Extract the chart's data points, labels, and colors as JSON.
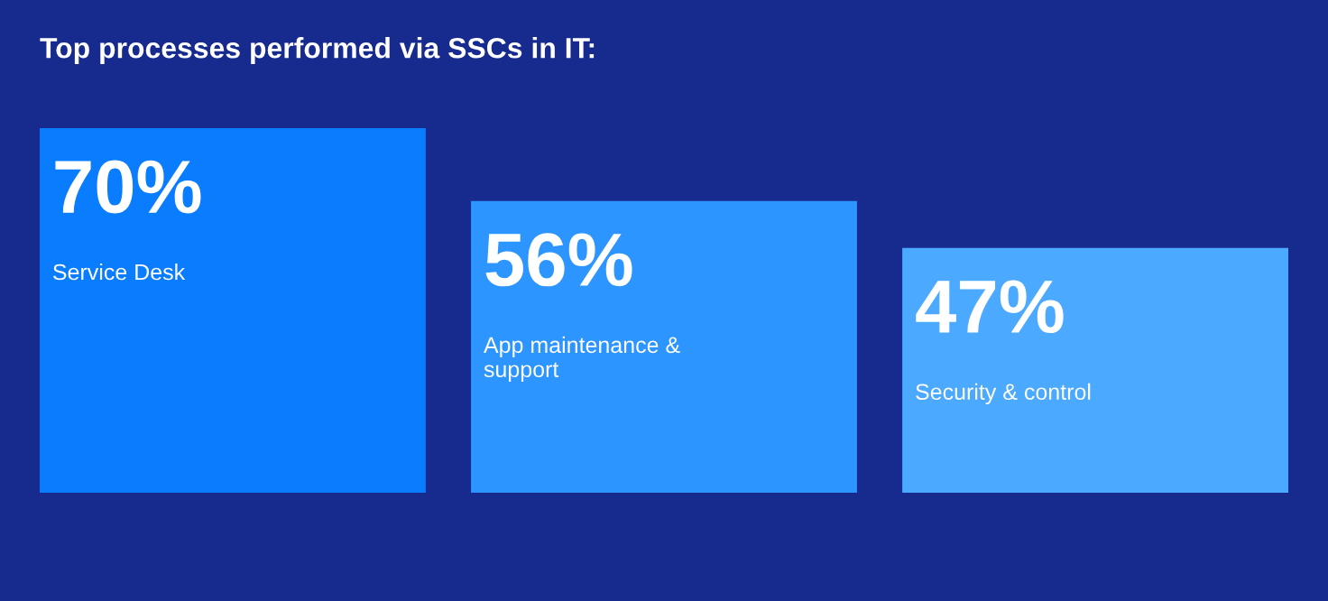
{
  "chart_data": {
    "type": "bar",
    "title": "Top processes performed via SSCs in IT:",
    "categories": [
      "Service Desk",
      "App maintenance &\nsupport",
      "Security & control"
    ],
    "values": [
      70,
      56,
      47
    ],
    "colors": [
      "#0a7dff",
      "#2c95ff",
      "#4ba9ff"
    ],
    "value_labels": [
      "70%",
      "56%",
      "47%"
    ]
  }
}
